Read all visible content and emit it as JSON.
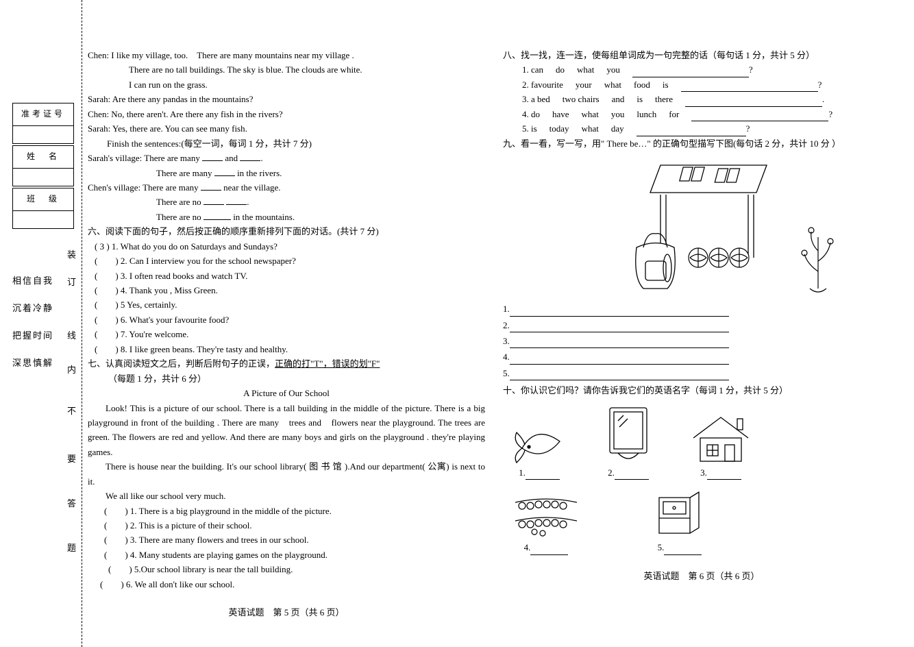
{
  "binding": {
    "table1_label": "准考证号",
    "table2_label": "姓　名",
    "table3_label": "班　级",
    "slogans": [
      "相信自我",
      "沉着冷静",
      "把握时间",
      "深思慎解"
    ],
    "spine_chars": [
      "装",
      "订",
      "线",
      "内",
      "不",
      "要",
      "答",
      "题"
    ]
  },
  "left": {
    "dialogue": {
      "l1": "Chen: I like my village, too.　There are many mountains near my village .",
      "l2": "There are no tall buildings. The sky is blue. The clouds are white.",
      "l3": "I can run on the grass.",
      "l4": "Sarah: Are there any pandas in the mountains?",
      "l5": "Chen: No, there aren't. Are there any fish in the rivers?",
      "l6": "Sarah: Yes, there are. You can see many fish.",
      "finish_head": "Finish the sentences:(每空一词，每词 1 分，共计 7 分)",
      "s1a": "Sarah's village: There are many ",
      "s1b": " and ",
      "s1c": ".",
      "s2a": "There are many ",
      "s2b": " in the rivers.",
      "s3a": "Chen's village: There are many ",
      "s3b": " near the village.",
      "s4a": "There are no ",
      "s4b": " ",
      "s4c": ".",
      "s5a": "There are no ",
      "s5b": " in the mountains."
    },
    "sec6": {
      "head": "六、阅读下面的句子，然后按正确的顺序重新排列下面的对话。(共计 7 分)",
      "items": [
        "(  3  )  1. What do you do on Saturdays and Sundays?",
        "(　　)  2. Can I interview you for the school newspaper?",
        "(　　)  3. I often read books and watch TV.",
        "(　　)  4. Thank you , Miss Green.",
        "(　　)  5 Yes, certainly.",
        "(　　)  6. What's your favourite food?",
        "(　　)  7. You're welcome.",
        "(　　)  8. I like green beans. They're tasty and healthy."
      ]
    },
    "sec7": {
      "head_a": "七、认真阅读短文之后，判断后附句子的正误，",
      "head_b": "正确的打\"T\"，错误的划\"F\"",
      "subhead": "（每题 1 分，共计 6 分）",
      "title": "A Picture of Our School",
      "p1": "Look!  This is a picture of our school. There is a tall building in the middle of the picture. There is a big playground in front of the building . There are many　trees and　flowers near the playground. The trees are green. The flowers are red and yellow. And there are many boys and girls on the playground . they're playing games.",
      "p2": "There is house near the building. It's our school library( 图 书 馆 ).And our department( 公寓) is next to it.",
      "p3": "We all like our school very much.",
      "tf": [
        "(　　) 1. There is a big playground in the middle of the picture.",
        "(　　) 2. This is a picture of their school.",
        "(　　) 3. There are many flowers and trees in our school.",
        "(　　) 4. Many students are playing games on the playground.",
        "(　　) 5.Our school library is near the tall building.",
        "(　　) 6. We all don't like our school."
      ]
    },
    "footer": "英语试题　第 5 页（共 6 页）"
  },
  "right": {
    "sec8": {
      "head": "八、找一找，连一连，使每组单词成为一句完整的话（每句话 1 分，共计 5 分）",
      "rows": [
        {
          "n": "1.",
          "words": [
            "can",
            "do",
            "what",
            "you"
          ],
          "end": "?",
          "line_w": 170
        },
        {
          "n": "2.",
          "words": [
            "favourite",
            "your",
            "what",
            "food",
            "is"
          ],
          "end": "?",
          "line_w": 200
        },
        {
          "n": "3.",
          "words": [
            "a bed",
            "two chairs",
            "and",
            "is",
            "there"
          ],
          "end": ".",
          "line_w": 200
        },
        {
          "n": "4.",
          "words": [
            "do",
            "have",
            "what",
            "you",
            "lunch",
            "for"
          ],
          "end": "?",
          "line_w": 200
        },
        {
          "n": "5.",
          "words": [
            "is",
            "today",
            "what",
            "day"
          ],
          "end": "?",
          "line_w": 160
        }
      ]
    },
    "sec9": {
      "head": "九、看一看，写一写，用\" There be…\" 的正确句型描写下图(每句话 2 分，共计 10 分 ）",
      "labels": [
        "1.",
        "2.",
        "3.",
        "4.",
        "5."
      ]
    },
    "sec10": {
      "head": "十、你认识它们吗？请你告诉我它们的英语名字（每词 1 分，共计 5 分）",
      "labels": [
        "1.",
        "2.",
        "3.",
        "4.",
        "5."
      ]
    },
    "footer": "英语试题　第 6 页（共 6 页）"
  }
}
